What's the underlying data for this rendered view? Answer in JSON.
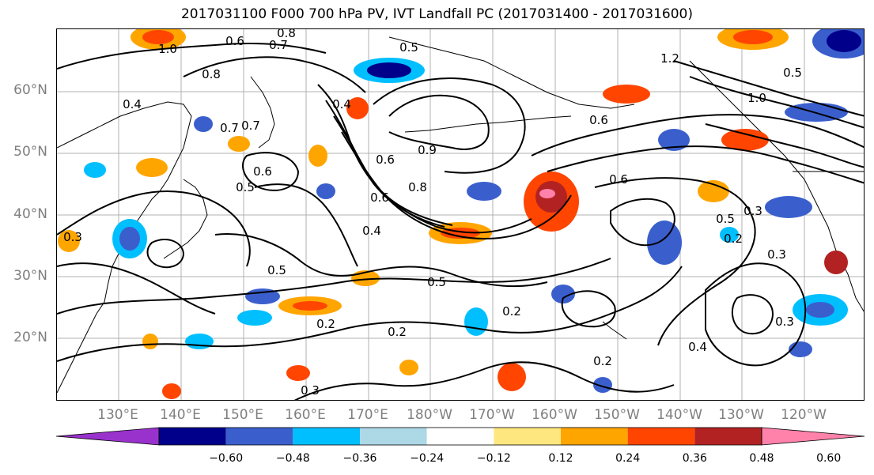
{
  "title": "2017031100 F000 700 hPa PV, IVT Landfall PC (2017031400 - 2017031600)",
  "map": {
    "lat_labels": [
      "60°N",
      "50°N",
      "40°N",
      "30°N",
      "20°N"
    ],
    "lon_labels": [
      "130°E",
      "140°E",
      "150°E",
      "160°E",
      "170°E",
      "180°W",
      "170°W",
      "160°W",
      "150°W",
      "140°W",
      "130°W",
      "120°W"
    ],
    "contour_labels": [
      "1.0",
      "0.6",
      "0.8",
      "0.7",
      "0.5",
      "0.4",
      "0.4",
      "0.8",
      "0.7",
      "0.6",
      "0.5",
      "0.4",
      "0.6",
      "0.6",
      "0.5",
      "0.5",
      "0.5",
      "0.2",
      "0.2",
      "0.2",
      "0.3",
      "0.4",
      "0.3",
      "0.2",
      "0.6",
      "0.6",
      "1.2",
      "1.0",
      "0.5",
      "0.9",
      "0.8",
      "0.3",
      "0.3",
      "0.2",
      "0.7",
      "0.3"
    ]
  },
  "colorbar": {
    "colors": [
      "#9932cc",
      "#00008b",
      "#3a5fcd",
      "#00bfff",
      "#add8e6",
      "#ffffff",
      "#ffe780",
      "#ffa500",
      "#ff4500",
      "#b22222",
      "#ff82ab"
    ],
    "tick_labels": [
      "−0.60",
      "−0.48",
      "−0.36",
      "−0.24",
      "−0.12",
      "0.12",
      "0.24",
      "0.36",
      "0.48",
      "0.60"
    ]
  }
}
